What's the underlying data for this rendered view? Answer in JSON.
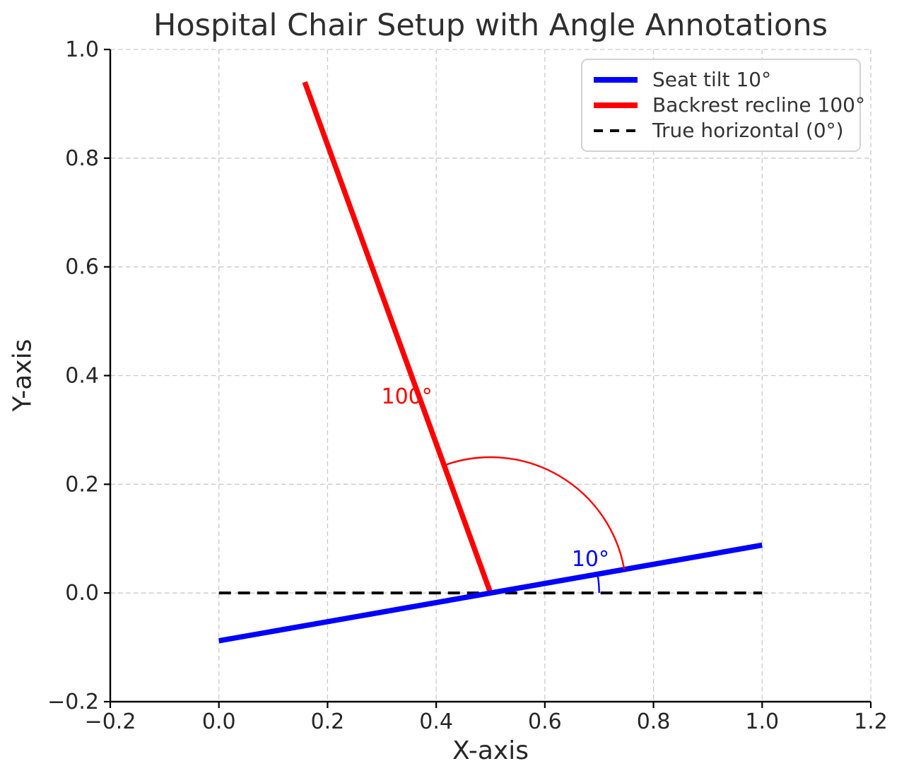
{
  "chart_data": {
    "type": "line",
    "title": "Hospital Chair Setup with Angle Annotations",
    "xlabel": "X-axis",
    "ylabel": "Y-axis",
    "xlim": [
      -0.2,
      1.2
    ],
    "ylim": [
      -0.2,
      1.0
    ],
    "xticks": [
      -0.2,
      0.0,
      0.2,
      0.4,
      0.6,
      0.8,
      1.0,
      1.2
    ],
    "yticks": [
      -0.2,
      0.0,
      0.2,
      0.4,
      0.6,
      0.8,
      1.0
    ],
    "xtick_labels": [
      "−0.2",
      "0.0",
      "0.2",
      "0.4",
      "0.6",
      "0.8",
      "1.0",
      "1.2"
    ],
    "ytick_labels": [
      "−0.2",
      "0.0",
      "0.2",
      "0.4",
      "0.6",
      "0.8",
      "1.0"
    ],
    "grid": true,
    "grid_color": "#c9c9c9",
    "spines": [
      "left",
      "bottom"
    ],
    "series": [
      {
        "id": "true-horizontal",
        "name": "True horizontal (0°)",
        "color": "#000000",
        "linestyle": "dashed",
        "linewidth": 4,
        "points": [
          [
            0.0,
            0.0
          ],
          [
            1.0,
            0.0
          ]
        ]
      },
      {
        "id": "backrest-recline",
        "name": "Backrest recline 100°",
        "color": "#ff0000",
        "linestyle": "solid",
        "linewidth": 7.5,
        "points": [
          [
            0.5,
            0.0
          ],
          [
            0.158,
            0.94
          ]
        ]
      },
      {
        "id": "seat-tilt",
        "name": "Seat tilt 10°",
        "color": "#0000ff",
        "linestyle": "solid",
        "linewidth": 7.5,
        "points": [
          [
            0.0,
            -0.088
          ],
          [
            1.0,
            0.088
          ]
        ]
      }
    ],
    "angle_arcs": [
      {
        "name": "backrest-angle-arc",
        "color": "#ff0000",
        "center": [
          0.5,
          0.0
        ],
        "radius": 0.25,
        "start_deg": 10,
        "end_deg": 110
      },
      {
        "name": "seat-angle-arc",
        "color": "#0000ff",
        "center": [
          0.5,
          0.0
        ],
        "radius": 0.2,
        "start_deg": 0,
        "end_deg": 10
      }
    ],
    "annotations": [
      {
        "name": "backrest-angle-label",
        "text": "100°",
        "color": "#ff0000",
        "x": 0.346,
        "y": 0.363
      },
      {
        "name": "seat-angle-label",
        "text": "10°",
        "color": "#0000ff",
        "x": 0.684,
        "y": 0.064
      }
    ],
    "legend": {
      "position": "upper right",
      "items": [
        {
          "label": "Seat tilt 10°",
          "color": "#0000ff",
          "linestyle": "solid"
        },
        {
          "label": "Backrest recline 100°",
          "color": "#ff0000",
          "linestyle": "solid"
        },
        {
          "label": "True horizontal (0°)",
          "color": "#000000",
          "linestyle": "dashed"
        }
      ]
    }
  }
}
